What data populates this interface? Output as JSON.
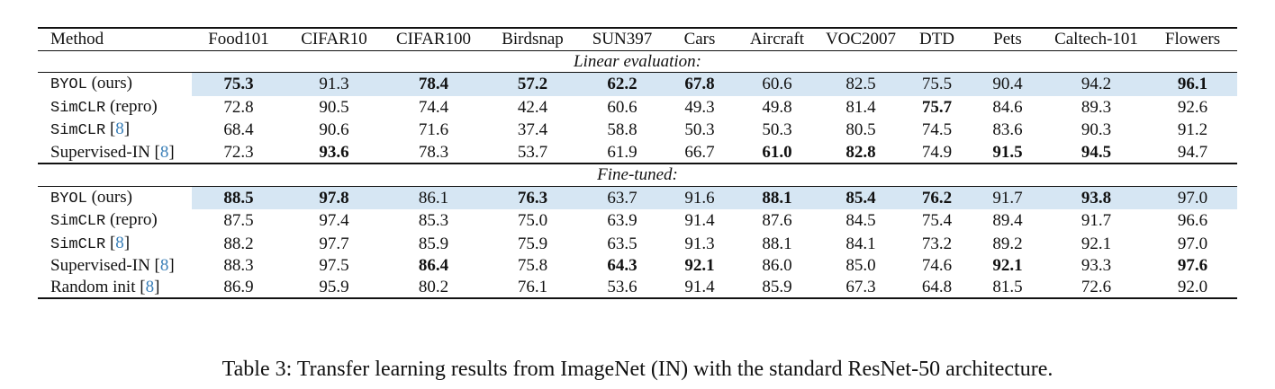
{
  "columns": [
    "Method",
    "Food101",
    "CIFAR10",
    "CIFAR100",
    "Birdsnap",
    "SUN397",
    "Cars",
    "Aircraft",
    "VOC2007",
    "DTD",
    "Pets",
    "Caltech-101",
    "Flowers"
  ],
  "sections": [
    {
      "title": "Linear evaluation:",
      "rows": [
        {
          "method_mono": "BYOL",
          "method_rest": " (ours)",
          "ref": "",
          "highlight": true,
          "values": [
            "75.3",
            "91.3",
            "78.4",
            "57.2",
            "62.2",
            "67.8",
            "60.6",
            "82.5",
            "75.5",
            "90.4",
            "94.2",
            "96.1"
          ],
          "bold": [
            true,
            false,
            true,
            true,
            true,
            true,
            false,
            false,
            false,
            false,
            false,
            true
          ]
        },
        {
          "method_mono": "SimCLR",
          "method_rest": " (repro)",
          "ref": "",
          "highlight": false,
          "values": [
            "72.8",
            "90.5",
            "74.4",
            "42.4",
            "60.6",
            "49.3",
            "49.8",
            "81.4",
            "75.7",
            "84.6",
            "89.3",
            "92.6"
          ],
          "bold": [
            false,
            false,
            false,
            false,
            false,
            false,
            false,
            false,
            true,
            false,
            false,
            false
          ]
        },
        {
          "method_mono": "SimCLR",
          "method_rest": " [",
          "ref": "8",
          "highlight": false,
          "values": [
            "68.4",
            "90.6",
            "71.6",
            "37.4",
            "58.8",
            "50.3",
            "50.3",
            "80.5",
            "74.5",
            "83.6",
            "90.3",
            "91.2"
          ],
          "bold": [
            false,
            false,
            false,
            false,
            false,
            false,
            false,
            false,
            false,
            false,
            false,
            false
          ]
        },
        {
          "method_mono": "",
          "method_rest": "Supervised-IN [",
          "ref": "8",
          "highlight": false,
          "values": [
            "72.3",
            "93.6",
            "78.3",
            "53.7",
            "61.9",
            "66.7",
            "61.0",
            "82.8",
            "74.9",
            "91.5",
            "94.5",
            "94.7"
          ],
          "bold": [
            false,
            true,
            false,
            false,
            false,
            false,
            true,
            true,
            false,
            true,
            true,
            false
          ]
        }
      ]
    },
    {
      "title": "Fine-tuned:",
      "rows": [
        {
          "method_mono": "BYOL",
          "method_rest": " (ours)",
          "ref": "",
          "highlight": true,
          "values": [
            "88.5",
            "97.8",
            "86.1",
            "76.3",
            "63.7",
            "91.6",
            "88.1",
            "85.4",
            "76.2",
            "91.7",
            "93.8",
            "97.0"
          ],
          "bold": [
            true,
            true,
            false,
            true,
            false,
            false,
            true,
            true,
            true,
            false,
            true,
            false
          ]
        },
        {
          "method_mono": "SimCLR",
          "method_rest": " (repro)",
          "ref": "",
          "highlight": false,
          "values": [
            "87.5",
            "97.4",
            "85.3",
            "75.0",
            "63.9",
            "91.4",
            "87.6",
            "84.5",
            "75.4",
            "89.4",
            "91.7",
            "96.6"
          ],
          "bold": [
            false,
            false,
            false,
            false,
            false,
            false,
            false,
            false,
            false,
            false,
            false,
            false
          ]
        },
        {
          "method_mono": "SimCLR",
          "method_rest": " [",
          "ref": "8",
          "highlight": false,
          "values": [
            "88.2",
            "97.7",
            "85.9",
            "75.9",
            "63.5",
            "91.3",
            "88.1",
            "84.1",
            "73.2",
            "89.2",
            "92.1",
            "97.0"
          ],
          "bold": [
            false,
            false,
            false,
            false,
            false,
            false,
            false,
            false,
            false,
            false,
            false,
            false
          ]
        },
        {
          "method_mono": "",
          "method_rest": "Supervised-IN [",
          "ref": "8",
          "highlight": false,
          "values": [
            "88.3",
            "97.5",
            "86.4",
            "75.8",
            "64.3",
            "92.1",
            "86.0",
            "85.0",
            "74.6",
            "92.1",
            "93.3",
            "97.6"
          ],
          "bold": [
            false,
            false,
            true,
            false,
            true,
            true,
            false,
            false,
            false,
            true,
            false,
            true
          ]
        },
        {
          "method_mono": "",
          "method_rest": "Random init [",
          "ref": "8",
          "highlight": false,
          "values": [
            "86.9",
            "95.9",
            "80.2",
            "76.1",
            "53.6",
            "91.4",
            "85.9",
            "67.3",
            "64.8",
            "81.5",
            "72.6",
            "92.0"
          ],
          "bold": [
            false,
            false,
            false,
            false,
            false,
            false,
            false,
            false,
            false,
            false,
            false,
            false
          ]
        }
      ]
    }
  ],
  "ref_close": "]",
  "highlight_color": "#d6e6f3",
  "link_color": "#3a7fb8",
  "caption": "Table 3: Transfer learning results from ImageNet (IN) with the standard ResNet-50 architecture."
}
